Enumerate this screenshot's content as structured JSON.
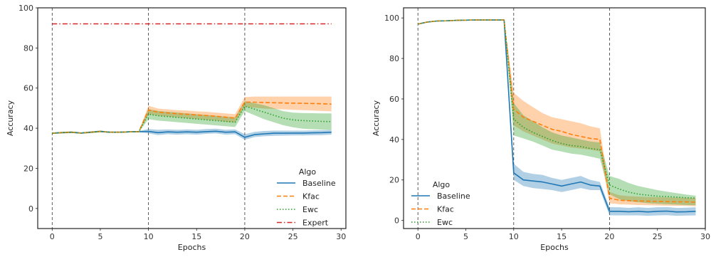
{
  "chart_data": [
    {
      "type": "line",
      "xlabel": "Epochs",
      "ylabel": "Accuracy",
      "xlim": [
        -1.5,
        30.5
      ],
      "ylim": [
        -10,
        100
      ],
      "xticks": [
        0,
        5,
        10,
        15,
        20,
        25,
        30
      ],
      "yticks": [
        0,
        20,
        40,
        60,
        80,
        100
      ],
      "vlines": [
        0,
        10,
        20
      ],
      "grid": false,
      "legend": {
        "title": "Algo",
        "placement": "lower-right"
      },
      "series": [
        {
          "name": "Baseline",
          "color": "#1f77b4",
          "dash": "solid",
          "x": [
            0,
            1,
            2,
            3,
            4,
            5,
            6,
            7,
            8,
            9,
            10,
            11,
            12,
            13,
            14,
            15,
            16,
            17,
            18,
            19,
            20,
            21,
            22,
            23,
            24,
            25,
            26,
            27,
            28,
            29
          ],
          "values": [
            37.5,
            37.8,
            38.0,
            37.6,
            38.0,
            38.4,
            38.0,
            38.0,
            38.2,
            38.3,
            38.4,
            37.8,
            38.2,
            38.0,
            38.2,
            38.0,
            38.3,
            38.5,
            38.0,
            38.2,
            35.5,
            36.8,
            37.2,
            37.5,
            37.5,
            37.6,
            37.6,
            37.7,
            37.8,
            38.0
          ],
          "lower": [
            37.2,
            37.4,
            37.6,
            37.3,
            37.6,
            38.0,
            37.7,
            37.7,
            37.9,
            38.0,
            37.4,
            36.6,
            37.0,
            36.8,
            37.0,
            36.8,
            37.2,
            37.4,
            36.8,
            37.0,
            34.2,
            35.6,
            36.0,
            36.2,
            36.3,
            36.4,
            36.4,
            36.5,
            36.6,
            36.8
          ],
          "upper": [
            37.8,
            38.2,
            38.4,
            37.9,
            38.4,
            38.8,
            38.3,
            38.3,
            38.5,
            38.6,
            39.6,
            39.2,
            39.4,
            39.2,
            39.4,
            39.2,
            39.6,
            39.8,
            39.2,
            39.4,
            37.0,
            38.2,
            38.6,
            38.8,
            38.8,
            38.8,
            38.8,
            38.9,
            39.0,
            39.2
          ]
        },
        {
          "name": "Kfac",
          "color": "#ff7f0e",
          "dash": "dashed",
          "x": [
            0,
            1,
            2,
            3,
            4,
            5,
            6,
            7,
            8,
            9,
            10,
            11,
            12,
            13,
            14,
            15,
            16,
            17,
            18,
            19,
            20,
            21,
            22,
            23,
            24,
            25,
            26,
            27,
            28,
            29
          ],
          "values": [
            37.5,
            37.8,
            38.0,
            37.6,
            38.0,
            38.4,
            38.0,
            38.0,
            38.2,
            38.3,
            49.0,
            48.0,
            47.6,
            47.2,
            47.0,
            46.6,
            46.3,
            46.0,
            45.5,
            45.0,
            53.0,
            53.0,
            52.8,
            52.7,
            52.6,
            52.5,
            52.4,
            52.3,
            52.2,
            52.0
          ],
          "lower": [
            37.2,
            37.4,
            37.6,
            37.3,
            37.6,
            38.0,
            37.7,
            37.7,
            37.9,
            38.0,
            47.0,
            46.2,
            45.8,
            45.4,
            45.0,
            44.6,
            44.2,
            43.8,
            43.2,
            42.8,
            50.5,
            50.2,
            49.8,
            49.6,
            49.4,
            49.2,
            49.0,
            48.8,
            48.6,
            48.4
          ],
          "upper": [
            37.8,
            38.2,
            38.4,
            37.9,
            38.4,
            38.8,
            38.3,
            38.3,
            38.5,
            38.6,
            51.2,
            49.8,
            49.4,
            49.0,
            48.8,
            48.4,
            48.2,
            47.8,
            47.4,
            47.0,
            55.5,
            55.8,
            55.8,
            55.8,
            55.8,
            55.8,
            55.8,
            55.8,
            55.8,
            55.8
          ]
        },
        {
          "name": "Ewc",
          "color": "#2ca02c",
          "dash": "dotted",
          "x": [
            0,
            1,
            2,
            3,
            4,
            5,
            6,
            7,
            8,
            9,
            10,
            11,
            12,
            13,
            14,
            15,
            16,
            17,
            18,
            19,
            20,
            21,
            22,
            23,
            24,
            25,
            26,
            27,
            28,
            29
          ],
          "values": [
            37.5,
            37.8,
            38.0,
            37.6,
            38.0,
            38.4,
            38.0,
            38.0,
            38.2,
            38.3,
            47.0,
            46.2,
            45.8,
            45.4,
            45.0,
            44.6,
            44.2,
            43.8,
            43.4,
            43.0,
            51.0,
            49.5,
            48.0,
            46.5,
            45.0,
            44.2,
            43.8,
            43.6,
            43.4,
            43.3
          ],
          "lower": [
            37.2,
            37.4,
            37.6,
            37.3,
            37.6,
            38.0,
            37.7,
            37.7,
            37.9,
            38.0,
            44.5,
            43.8,
            43.4,
            43.0,
            42.6,
            42.2,
            41.8,
            41.4,
            41.0,
            40.6,
            48.5,
            46.5,
            44.5,
            43.0,
            41.5,
            40.5,
            39.8,
            39.5,
            39.3,
            39.2
          ],
          "upper": [
            37.8,
            38.2,
            38.4,
            37.9,
            38.4,
            38.8,
            38.3,
            38.3,
            38.5,
            38.6,
            49.5,
            48.6,
            48.2,
            47.8,
            47.4,
            47.0,
            46.6,
            46.2,
            45.8,
            45.4,
            53.5,
            52.5,
            51.5,
            50.0,
            48.5,
            47.8,
            47.6,
            47.5,
            47.4,
            47.4
          ]
        },
        {
          "name": "Expert",
          "color": "#d62728",
          "dash": "dashdot",
          "x": [
            0,
            29
          ],
          "values": [
            92.0,
            92.0
          ]
        }
      ]
    },
    {
      "type": "line",
      "xlabel": "Epochs",
      "ylabel": "Accuracy",
      "xlim": [
        -1.5,
        30.0
      ],
      "ylim": [
        -4,
        105
      ],
      "xticks": [
        0,
        5,
        10,
        15,
        20,
        25,
        30
      ],
      "yticks": [
        0,
        20,
        40,
        60,
        80,
        100
      ],
      "vlines": [
        0,
        10,
        20
      ],
      "grid": false,
      "legend": {
        "title": "Algo",
        "placement": "lower-left"
      },
      "series": [
        {
          "name": "Baseline",
          "color": "#1f77b4",
          "dash": "solid",
          "x": [
            0,
            1,
            2,
            3,
            4,
            5,
            6,
            7,
            8,
            9,
            10,
            11,
            12,
            13,
            14,
            15,
            16,
            17,
            18,
            19,
            20,
            21,
            22,
            23,
            24,
            25,
            26,
            27,
            28,
            29
          ],
          "values": [
            97.0,
            98.0,
            98.5,
            98.6,
            98.8,
            98.9,
            99.0,
            99.0,
            99.0,
            99.0,
            23.5,
            20.0,
            19.5,
            19.0,
            18.0,
            17.0,
            18.0,
            19.0,
            17.5,
            17.0,
            4.5,
            4.5,
            4.3,
            4.5,
            4.2,
            4.5,
            4.6,
            4.2,
            4.3,
            4.5
          ],
          "lower": [
            96.8,
            97.8,
            98.3,
            98.4,
            98.6,
            98.7,
            98.8,
            98.8,
            98.8,
            98.8,
            20.0,
            17.0,
            16.0,
            15.5,
            15.0,
            14.0,
            15.0,
            16.0,
            15.0,
            15.0,
            2.5,
            2.5,
            2.5,
            2.5,
            2.3,
            2.5,
            2.6,
            2.3,
            2.4,
            2.5
          ],
          "upper": [
            97.2,
            98.2,
            98.7,
            98.8,
            99.0,
            99.1,
            99.2,
            99.2,
            99.2,
            99.2,
            28.0,
            24.0,
            23.0,
            22.5,
            21.0,
            20.0,
            21.0,
            22.0,
            20.0,
            19.0,
            6.5,
            6.5,
            6.2,
            6.5,
            6.2,
            6.5,
            6.6,
            6.2,
            6.3,
            6.5
          ]
        },
        {
          "name": "Kfac",
          "color": "#ff7f0e",
          "dash": "dashed",
          "x": [
            0,
            1,
            2,
            3,
            4,
            5,
            6,
            7,
            8,
            9,
            10,
            11,
            12,
            13,
            14,
            15,
            16,
            17,
            18,
            19,
            20,
            21,
            22,
            23,
            24,
            25,
            26,
            27,
            28,
            29
          ],
          "values": [
            97.0,
            98.0,
            98.5,
            98.6,
            98.8,
            98.9,
            99.0,
            99.0,
            99.0,
            99.0,
            55.0,
            51.0,
            49.0,
            47.0,
            45.0,
            44.0,
            42.5,
            41.5,
            40.5,
            40.0,
            11.0,
            10.0,
            9.8,
            9.6,
            9.5,
            9.4,
            9.3,
            9.2,
            9.2,
            9.0
          ],
          "lower": [
            96.8,
            97.8,
            98.3,
            98.4,
            98.6,
            98.7,
            98.8,
            98.8,
            98.8,
            98.8,
            47.0,
            44.0,
            42.0,
            40.0,
            38.0,
            37.0,
            36.0,
            35.5,
            35.0,
            34.0,
            8.5,
            8.0,
            7.8,
            7.6,
            7.5,
            7.4,
            7.3,
            7.2,
            7.2,
            7.0
          ],
          "upper": [
            97.2,
            98.2,
            98.7,
            98.8,
            99.0,
            99.1,
            99.2,
            99.2,
            99.2,
            99.2,
            63.0,
            59.0,
            56.0,
            53.0,
            51.0,
            50.0,
            49.0,
            48.0,
            46.5,
            45.5,
            14.0,
            12.5,
            12.0,
            11.8,
            11.6,
            11.5,
            11.4,
            11.3,
            11.2,
            11.0
          ]
        },
        {
          "name": "Ewc",
          "color": "#2ca02c",
          "dash": "dotted",
          "x": [
            0,
            1,
            2,
            3,
            4,
            5,
            6,
            7,
            8,
            9,
            10,
            11,
            12,
            13,
            14,
            15,
            16,
            17,
            18,
            19,
            20,
            21,
            22,
            23,
            24,
            25,
            26,
            27,
            28,
            29
          ],
          "values": [
            97.0,
            98.0,
            98.5,
            98.6,
            98.8,
            98.9,
            99.0,
            99.0,
            99.0,
            99.0,
            50.0,
            46.0,
            43.5,
            41.5,
            39.5,
            38.0,
            37.0,
            36.5,
            35.5,
            35.0,
            17.5,
            15.5,
            14.0,
            13.0,
            12.5,
            12.0,
            11.8,
            11.5,
            11.2,
            11.0
          ],
          "lower": [
            96.8,
            97.8,
            98.3,
            98.4,
            98.6,
            98.7,
            98.8,
            98.8,
            98.8,
            98.8,
            42.0,
            40.5,
            39.0,
            37.0,
            35.0,
            34.0,
            33.0,
            32.5,
            31.5,
            30.5,
            13.0,
            10.5,
            9.5,
            9.0,
            8.5,
            8.2,
            8.0,
            7.8,
            7.6,
            7.5
          ],
          "upper": [
            97.2,
            98.2,
            98.7,
            98.8,
            99.0,
            99.1,
            99.2,
            99.2,
            99.2,
            99.2,
            58.0,
            52.0,
            49.0,
            46.0,
            43.5,
            42.0,
            41.0,
            40.0,
            39.0,
            38.5,
            22.0,
            20.5,
            18.5,
            17.0,
            16.0,
            15.0,
            14.2,
            13.5,
            12.8,
            12.2
          ]
        }
      ]
    }
  ]
}
